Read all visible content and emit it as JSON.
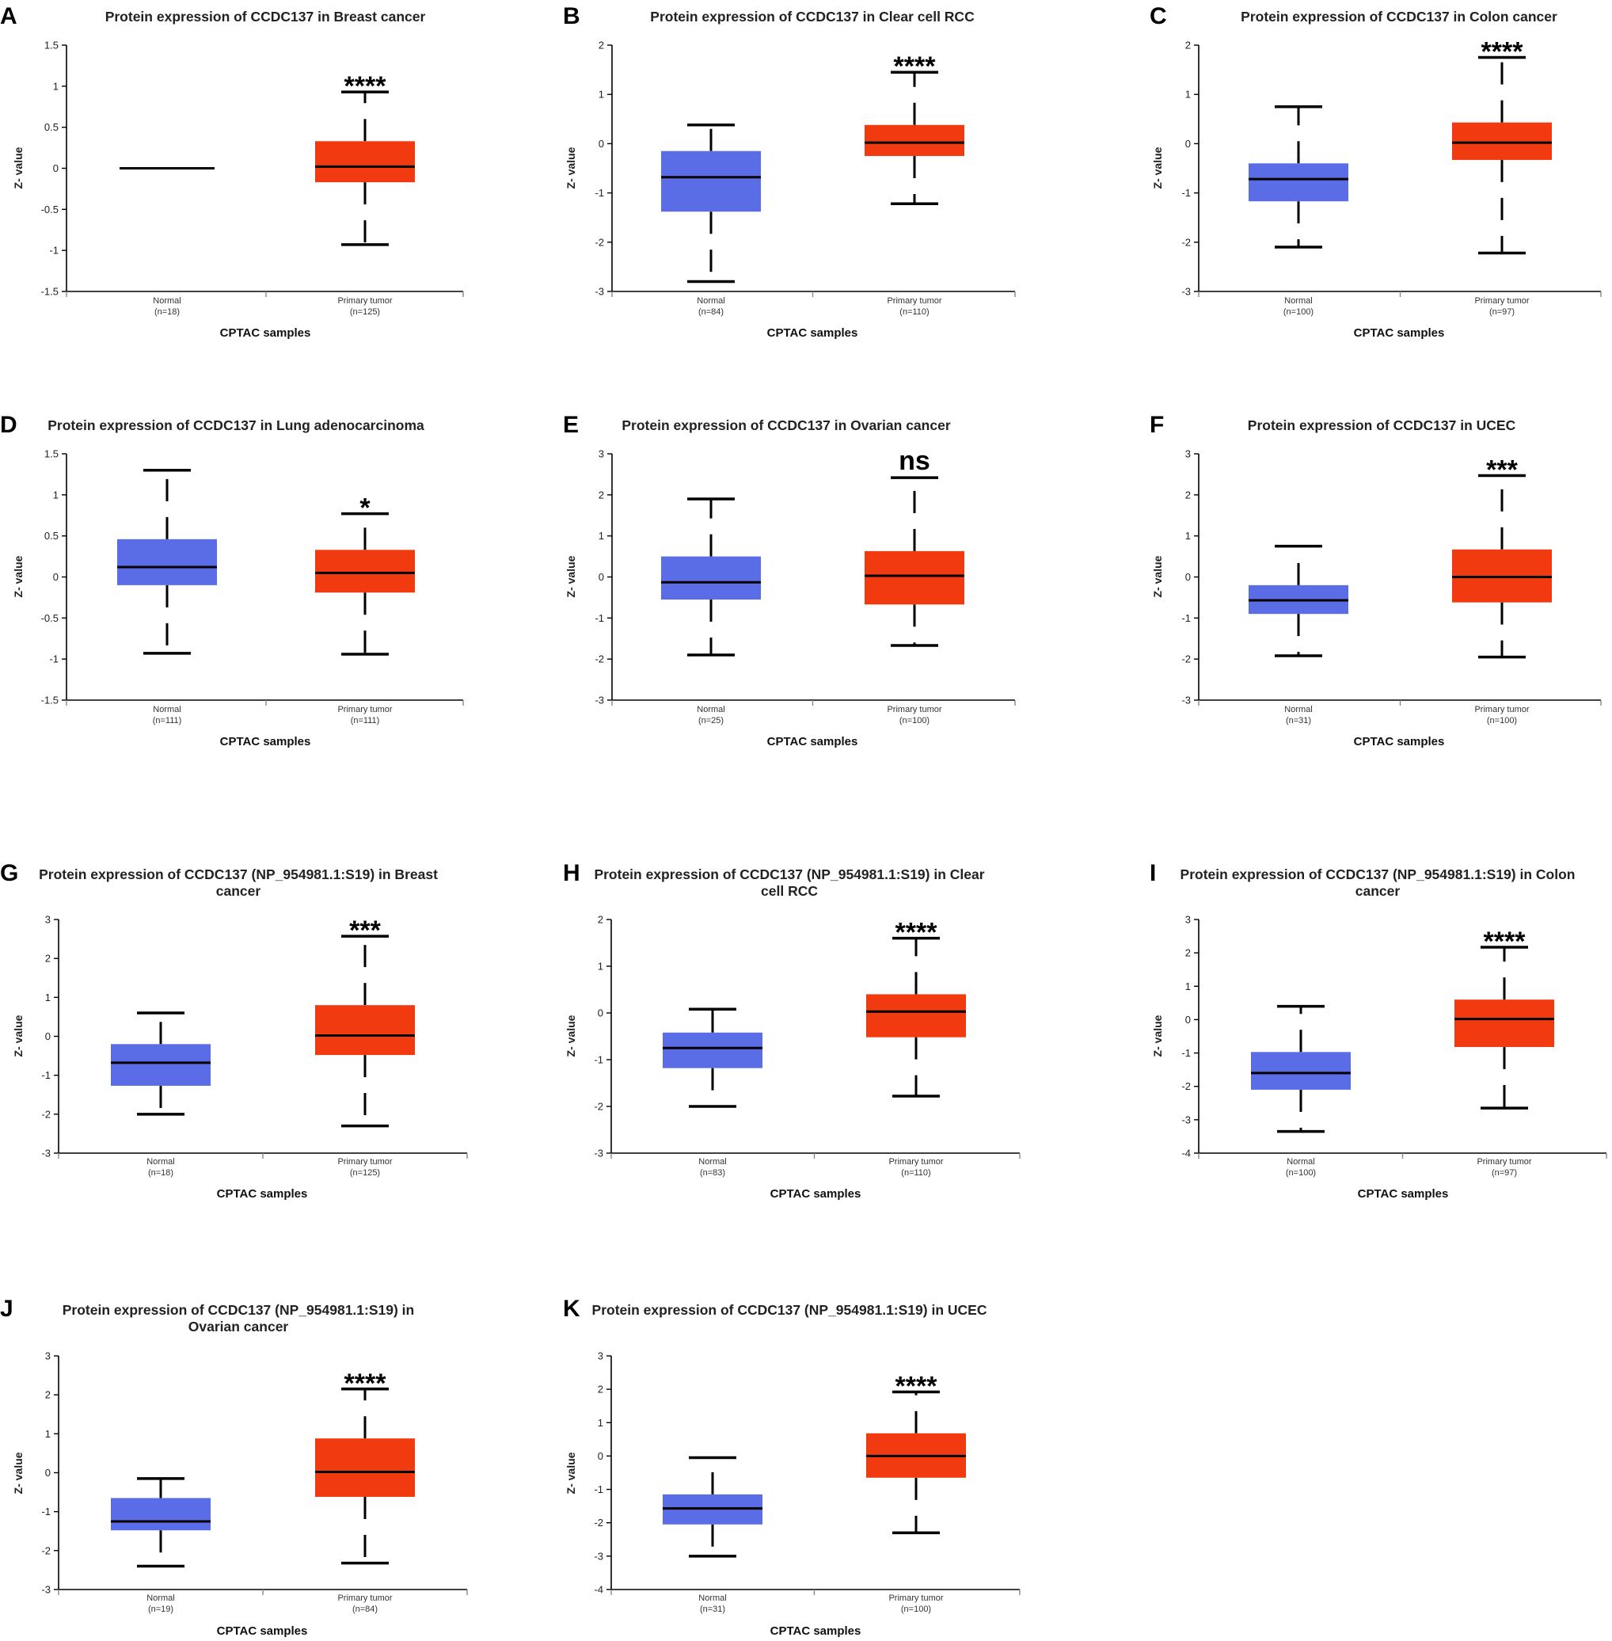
{
  "colors": {
    "normal": "#5b6de6",
    "tumor": "#f23a10",
    "axis": "#000000"
  },
  "chart_data": [
    {
      "panel": "A",
      "type": "box",
      "title_lines": [
        "Protein expression of CCDC137 in Breast cancer"
      ],
      "ylabel": "Z- value",
      "xlabel": "CPTAC samples",
      "ylim": [
        -1.5,
        1.5
      ],
      "yticks": [
        -1.5,
        -1,
        -0.5,
        0,
        0.5,
        1,
        1.5
      ],
      "ytick_labels": [
        "-1.5",
        "-1",
        "-0.5",
        "0",
        "0.5",
        "1",
        "1.5"
      ],
      "significance": "****",
      "groups": [
        {
          "name": "Normal",
          "n_label": "(n=18)",
          "color": "normal",
          "min": 0,
          "q1": 0,
          "median": 0,
          "q3": 0,
          "max": 0
        },
        {
          "name": "Primary tumor",
          "n_label": "(n=125)",
          "color": "tumor",
          "min": -0.93,
          "q1": -0.17,
          "median": 0.02,
          "q3": 0.33,
          "max": 0.93
        }
      ]
    },
    {
      "panel": "B",
      "type": "box",
      "title_lines": [
        "Protein expression of CCDC137 in Clear cell RCC"
      ],
      "ylabel": "Z- value",
      "xlabel": "CPTAC samples",
      "ylim": [
        -3,
        2
      ],
      "yticks": [
        -3,
        -2,
        -1,
        0,
        1,
        2
      ],
      "ytick_labels": [
        "-3",
        "-2",
        "-1",
        "0",
        "1",
        "2"
      ],
      "significance": "****",
      "groups": [
        {
          "name": "Normal",
          "n_label": "(n=84)",
          "color": "normal",
          "min": -2.8,
          "q1": -1.38,
          "median": -0.68,
          "q3": -0.15,
          "max": 0.38
        },
        {
          "name": "Primary tumor",
          "n_label": "(n=110)",
          "color": "tumor",
          "min": -1.22,
          "q1": -0.25,
          "median": 0.02,
          "q3": 0.38,
          "max": 1.45
        }
      ]
    },
    {
      "panel": "C",
      "type": "box",
      "title_lines": [
        "Protein expression of CCDC137 in Colon cancer"
      ],
      "ylabel": "Z- value",
      "xlabel": "CPTAC samples",
      "ylim": [
        -3,
        2
      ],
      "yticks": [
        -3,
        -2,
        -1,
        0,
        1,
        2
      ],
      "ytick_labels": [
        "-3",
        "-2",
        "-1",
        "0",
        "1",
        "2"
      ],
      "significance": "****",
      "groups": [
        {
          "name": "Normal",
          "n_label": "(n=100)",
          "color": "normal",
          "min": -2.1,
          "q1": -1.17,
          "median": -0.72,
          "q3": -0.4,
          "max": 0.75
        },
        {
          "name": "Primary tumor",
          "n_label": "(n=97)",
          "color": "tumor",
          "min": -2.22,
          "q1": -0.33,
          "median": 0.02,
          "q3": 0.43,
          "max": 1.75
        }
      ]
    },
    {
      "panel": "D",
      "type": "box",
      "title_lines": [
        "Protein expression of CCDC137 in Lung adenocarcinoma"
      ],
      "ylabel": "Z- value",
      "xlabel": "CPTAC samples",
      "ylim": [
        -1.5,
        1.5
      ],
      "yticks": [
        -1.5,
        -1,
        -0.5,
        0,
        0.5,
        1,
        1.5
      ],
      "ytick_labels": [
        "-1.5",
        "-1",
        "-0.5",
        "0",
        "0.5",
        "1",
        "1.5"
      ],
      "significance": "*",
      "groups": [
        {
          "name": "Normal",
          "n_label": "(n=111)",
          "color": "normal",
          "min": -0.93,
          "q1": -0.1,
          "median": 0.12,
          "q3": 0.46,
          "max": 1.3
        },
        {
          "name": "Primary tumor",
          "n_label": "(n=111)",
          "color": "tumor",
          "min": -0.94,
          "q1": -0.19,
          "median": 0.05,
          "q3": 0.33,
          "max": 0.77
        }
      ]
    },
    {
      "panel": "E",
      "type": "box",
      "title_lines": [
        "Protein expression of CCDC137 in Ovarian cancer"
      ],
      "ylabel": "Z- value",
      "xlabel": "CPTAC samples",
      "ylim": [
        -3,
        3
      ],
      "yticks": [
        -3,
        -2,
        -1,
        0,
        1,
        2,
        3
      ],
      "ytick_labels": [
        "-3",
        "-2",
        "-1",
        "0",
        "1",
        "2",
        "3"
      ],
      "significance": "ns",
      "groups": [
        {
          "name": "Normal",
          "n_label": "(n=25)",
          "color": "normal",
          "min": -1.9,
          "q1": -0.55,
          "median": -0.13,
          "q3": 0.5,
          "max": 1.9
        },
        {
          "name": "Primary tumor",
          "n_label": "(n=100)",
          "color": "tumor",
          "min": -1.67,
          "q1": -0.67,
          "median": 0.03,
          "q3": 0.63,
          "max": 2.42
        }
      ]
    },
    {
      "panel": "F",
      "type": "box",
      "title_lines": [
        "Protein expression of CCDC137 in UCEC"
      ],
      "ylabel": "Z- value",
      "xlabel": "CPTAC samples",
      "ylim": [
        -3,
        3
      ],
      "yticks": [
        -3,
        -2,
        -1,
        0,
        1,
        2,
        3
      ],
      "ytick_labels": [
        "-3",
        "-2",
        "-1",
        "0",
        "1",
        "2",
        "3"
      ],
      "significance": "***",
      "groups": [
        {
          "name": "Normal",
          "n_label": "(n=31)",
          "color": "normal",
          "min": -1.92,
          "q1": -0.9,
          "median": -0.57,
          "q3": -0.2,
          "max": 0.75
        },
        {
          "name": "Primary tumor",
          "n_label": "(n=100)",
          "color": "tumor",
          "min": -1.95,
          "q1": -0.62,
          "median": 0.0,
          "q3": 0.67,
          "max": 2.47
        }
      ]
    },
    {
      "panel": "G",
      "type": "box",
      "title_lines": [
        "Protein expression of CCDC137 (NP_954981.1:S19) in Breast",
        "cancer"
      ],
      "ylabel": "Z- value",
      "xlabel": "CPTAC samples",
      "ylim": [
        -3,
        3
      ],
      "yticks": [
        -3,
        -2,
        -1,
        0,
        1,
        2,
        3
      ],
      "ytick_labels": [
        "-3",
        "-2",
        "-1",
        "0",
        "1",
        "2",
        "3"
      ],
      "significance": "***",
      "groups": [
        {
          "name": "Normal",
          "n_label": "(n=18)",
          "color": "normal",
          "min": -2.0,
          "q1": -1.27,
          "median": -0.68,
          "q3": -0.2,
          "max": 0.6
        },
        {
          "name": "Primary tumor",
          "n_label": "(n=125)",
          "color": "tumor",
          "min": -2.3,
          "q1": -0.48,
          "median": 0.02,
          "q3": 0.8,
          "max": 2.57
        }
      ]
    },
    {
      "panel": "H",
      "type": "box",
      "title_lines": [
        "Protein expression of CCDC137 (NP_954981.1:S19) in Clear",
        "cell RCC"
      ],
      "ylabel": "Z- value",
      "xlabel": "CPTAC samples",
      "ylim": [
        -3,
        2
      ],
      "yticks": [
        -3,
        -2,
        -1,
        0,
        1,
        2
      ],
      "ytick_labels": [
        "-3",
        "-2",
        "-1",
        "0",
        "1",
        "2"
      ],
      "significance": "****",
      "groups": [
        {
          "name": "Normal",
          "n_label": "(n=83)",
          "color": "normal",
          "min": -2.0,
          "q1": -1.18,
          "median": -0.75,
          "q3": -0.42,
          "max": 0.08
        },
        {
          "name": "Primary tumor",
          "n_label": "(n=110)",
          "color": "tumor",
          "min": -1.78,
          "q1": -0.52,
          "median": 0.03,
          "q3": 0.4,
          "max": 1.6
        }
      ]
    },
    {
      "panel": "I",
      "type": "box",
      "title_lines": [
        "Protein expression of CCDC137 (NP_954981.1:S19) in Colon",
        "cancer"
      ],
      "ylabel": "Z- value",
      "xlabel": "CPTAC samples",
      "ylim": [
        -4,
        3
      ],
      "yticks": [
        -4,
        -3,
        -2,
        -1,
        0,
        1,
        2,
        3
      ],
      "ytick_labels": [
        "-4",
        "-3",
        "-2",
        "-1",
        "0",
        "1",
        "2",
        "3"
      ],
      "significance": "****",
      "groups": [
        {
          "name": "Normal",
          "n_label": "(n=100)",
          "color": "normal",
          "min": -3.35,
          "q1": -2.1,
          "median": -1.6,
          "q3": -0.97,
          "max": 0.4
        },
        {
          "name": "Primary tumor",
          "n_label": "(n=97)",
          "color": "tumor",
          "min": -2.65,
          "q1": -0.82,
          "median": 0.02,
          "q3": 0.6,
          "max": 2.17
        }
      ]
    },
    {
      "panel": "J",
      "type": "box",
      "title_lines": [
        "Protein expression of CCDC137 (NP_954981.1:S19) in",
        "Ovarian cancer"
      ],
      "ylabel": "Z- value",
      "xlabel": "CPTAC samples",
      "ylim": [
        -3,
        3
      ],
      "yticks": [
        -3,
        -2,
        -1,
        0,
        1,
        2,
        3
      ],
      "ytick_labels": [
        "-3",
        "-2",
        "-1",
        "0",
        "1",
        "2",
        "3"
      ],
      "significance": "****",
      "groups": [
        {
          "name": "Normal",
          "n_label": "(n=19)",
          "color": "normal",
          "min": -2.4,
          "q1": -1.48,
          "median": -1.25,
          "q3": -0.65,
          "max": -0.15
        },
        {
          "name": "Primary tumor",
          "n_label": "(n=84)",
          "color": "tumor",
          "min": -2.32,
          "q1": -0.62,
          "median": 0.02,
          "q3": 0.88,
          "max": 2.15
        }
      ]
    },
    {
      "panel": "K",
      "type": "box",
      "title_lines": [
        "Protein expression of CCDC137 (NP_954981.1:S19) in UCEC"
      ],
      "ylabel": "Z- value",
      "xlabel": "CPTAC samples",
      "ylim": [
        -4,
        3
      ],
      "yticks": [
        -4,
        -3,
        -2,
        -1,
        0,
        1,
        2,
        3
      ],
      "ytick_labels": [
        "-4",
        "-3",
        "-2",
        "-1",
        "0",
        "1",
        "2",
        "3"
      ],
      "significance": "****",
      "groups": [
        {
          "name": "Normal",
          "n_label": "(n=31)",
          "color": "normal",
          "min": -3.0,
          "q1": -2.05,
          "median": -1.57,
          "q3": -1.15,
          "max": -0.05
        },
        {
          "name": "Primary tumor",
          "n_label": "(n=100)",
          "color": "tumor",
          "min": -2.3,
          "q1": -0.65,
          "median": 0.0,
          "q3": 0.68,
          "max": 1.92
        }
      ]
    }
  ]
}
